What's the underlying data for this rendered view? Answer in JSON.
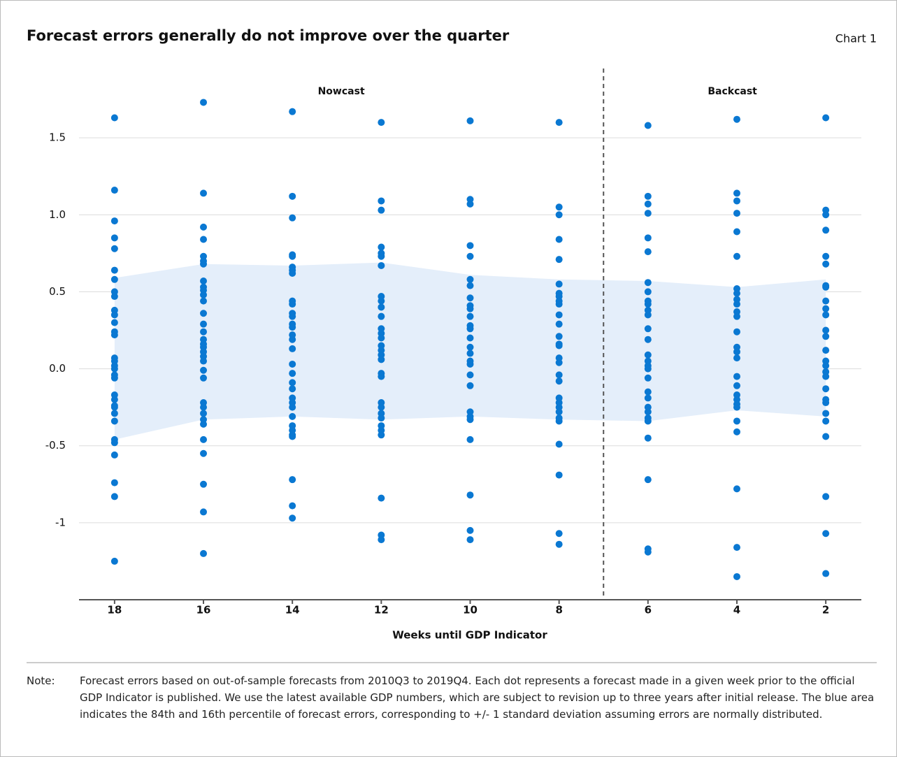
{
  "chart_data": {
    "type": "strip",
    "title": "Forecast errors generally do not improve over the quarter",
    "corner_label": "Chart 1",
    "xlabel": "Weeks until GDP Indicator",
    "regions": [
      "Nowcast",
      "Backcast"
    ],
    "divider_x": 7,
    "x": [
      18,
      16,
      14,
      12,
      10,
      8,
      6,
      4,
      2
    ],
    "xlim": [
      18.8,
      1.2
    ],
    "ylim": [
      -1.5,
      1.95
    ],
    "yticks": [
      -1.0,
      -0.5,
      {
        "value": 0,
        "label": "0.0"
      },
      0.5,
      {
        "value": 1,
        "label": "1.0"
      },
      1.5
    ],
    "grid": true,
    "color": "#0a78d2",
    "band": {
      "color": "#e4eefa",
      "upper": [
        0.59,
        0.68,
        0.67,
        0.69,
        0.61,
        0.58,
        0.57,
        0.53,
        0.58
      ],
      "lower": [
        -0.46,
        -0.33,
        -0.31,
        -0.33,
        -0.31,
        -0.33,
        -0.34,
        -0.27,
        -0.31
      ]
    },
    "points": [
      [
        1.63,
        1.16,
        0.96,
        0.85,
        0.78,
        0.64,
        0.58,
        0.5,
        0.47,
        0.38,
        0.35,
        0.3,
        0.24,
        0.22,
        0.07,
        0.05,
        0.02,
        0.0,
        -0.04,
        -0.06,
        -0.17,
        -0.2,
        -0.24,
        -0.25,
        -0.29,
        -0.34,
        -0.46,
        -0.48,
        -0.56,
        -0.74,
        -0.83,
        -1.25
      ],
      [
        1.73,
        1.14,
        0.92,
        0.84,
        0.73,
        0.7,
        0.68,
        0.57,
        0.53,
        0.51,
        0.48,
        0.44,
        0.36,
        0.29,
        0.24,
        0.19,
        0.16,
        0.14,
        0.11,
        0.08,
        0.05,
        -0.01,
        -0.06,
        -0.22,
        -0.25,
        -0.29,
        -0.33,
        -0.36,
        -0.46,
        -0.55,
        -0.75,
        -0.93,
        -1.2
      ],
      [
        1.67,
        1.12,
        0.98,
        0.74,
        0.73,
        0.66,
        0.64,
        0.62,
        0.44,
        0.42,
        0.36,
        0.34,
        0.29,
        0.27,
        0.22,
        0.19,
        0.13,
        0.03,
        -0.03,
        -0.09,
        -0.13,
        -0.19,
        -0.22,
        -0.25,
        -0.31,
        -0.37,
        -0.4,
        -0.43,
        -0.44,
        -0.72,
        -0.89,
        -0.97
      ],
      [
        1.6,
        1.09,
        1.03,
        0.79,
        0.75,
        0.73,
        0.67,
        0.47,
        0.44,
        0.4,
        0.34,
        0.26,
        0.23,
        0.2,
        0.15,
        0.12,
        0.09,
        0.06,
        -0.03,
        -0.05,
        -0.22,
        -0.25,
        -0.29,
        -0.32,
        -0.37,
        -0.4,
        -0.43,
        -0.84,
        -1.08,
        -1.11
      ],
      [
        1.61,
        1.1,
        1.07,
        0.8,
        0.73,
        0.58,
        0.54,
        0.46,
        0.41,
        0.39,
        0.34,
        0.28,
        0.26,
        0.2,
        0.14,
        0.1,
        0.05,
        0.03,
        -0.04,
        -0.11,
        -0.28,
        -0.31,
        -0.33,
        -0.46,
        -0.82,
        -1.05,
        -1.11
      ],
      [
        1.6,
        1.05,
        1.0,
        0.84,
        0.71,
        0.55,
        0.49,
        0.47,
        0.44,
        0.42,
        0.35,
        0.29,
        0.21,
        0.16,
        0.15,
        0.07,
        0.04,
        -0.04,
        -0.08,
        -0.19,
        -0.22,
        -0.25,
        -0.28,
        -0.32,
        -0.34,
        -0.49,
        -0.69,
        -1.07,
        -1.14
      ],
      [
        1.58,
        1.12,
        1.07,
        1.01,
        0.85,
        0.76,
        0.56,
        0.5,
        0.44,
        0.42,
        0.38,
        0.35,
        0.26,
        0.19,
        0.09,
        0.05,
        0.02,
        0.0,
        -0.06,
        -0.15,
        -0.19,
        -0.25,
        -0.28,
        -0.32,
        -0.34,
        -0.45,
        -0.72,
        -1.17,
        -1.19
      ],
      [
        1.62,
        1.14,
        1.09,
        1.01,
        0.89,
        0.73,
        0.52,
        0.49,
        0.45,
        0.42,
        0.37,
        0.34,
        0.24,
        0.14,
        0.11,
        0.07,
        -0.05,
        -0.11,
        -0.17,
        -0.2,
        -0.23,
        -0.25,
        -0.34,
        -0.41,
        -0.78,
        -1.16,
        -1.35
      ],
      [
        1.63,
        1.03,
        1.0,
        0.9,
        0.73,
        0.68,
        0.54,
        0.53,
        0.44,
        0.39,
        0.35,
        0.25,
        0.21,
        0.12,
        0.05,
        0.02,
        -0.02,
        -0.05,
        -0.13,
        -0.2,
        -0.22,
        -0.29,
        -0.34,
        -0.44,
        -0.83,
        -1.07,
        -1.33
      ]
    ]
  },
  "note": {
    "label": "Note:",
    "text": "Forecast errors based on out-of-sample forecasts from 2010Q3 to 2019Q4. Each dot represents a forecast made in a given week prior to the official GDP Indicator is published. We use the latest available GDP numbers, which are subject to revision up to three years after initial release. The blue area indicates the 84th and 16th percentile of forecast errors, corresponding to +/- 1 standard deviation assuming errors are normally distributed."
  }
}
